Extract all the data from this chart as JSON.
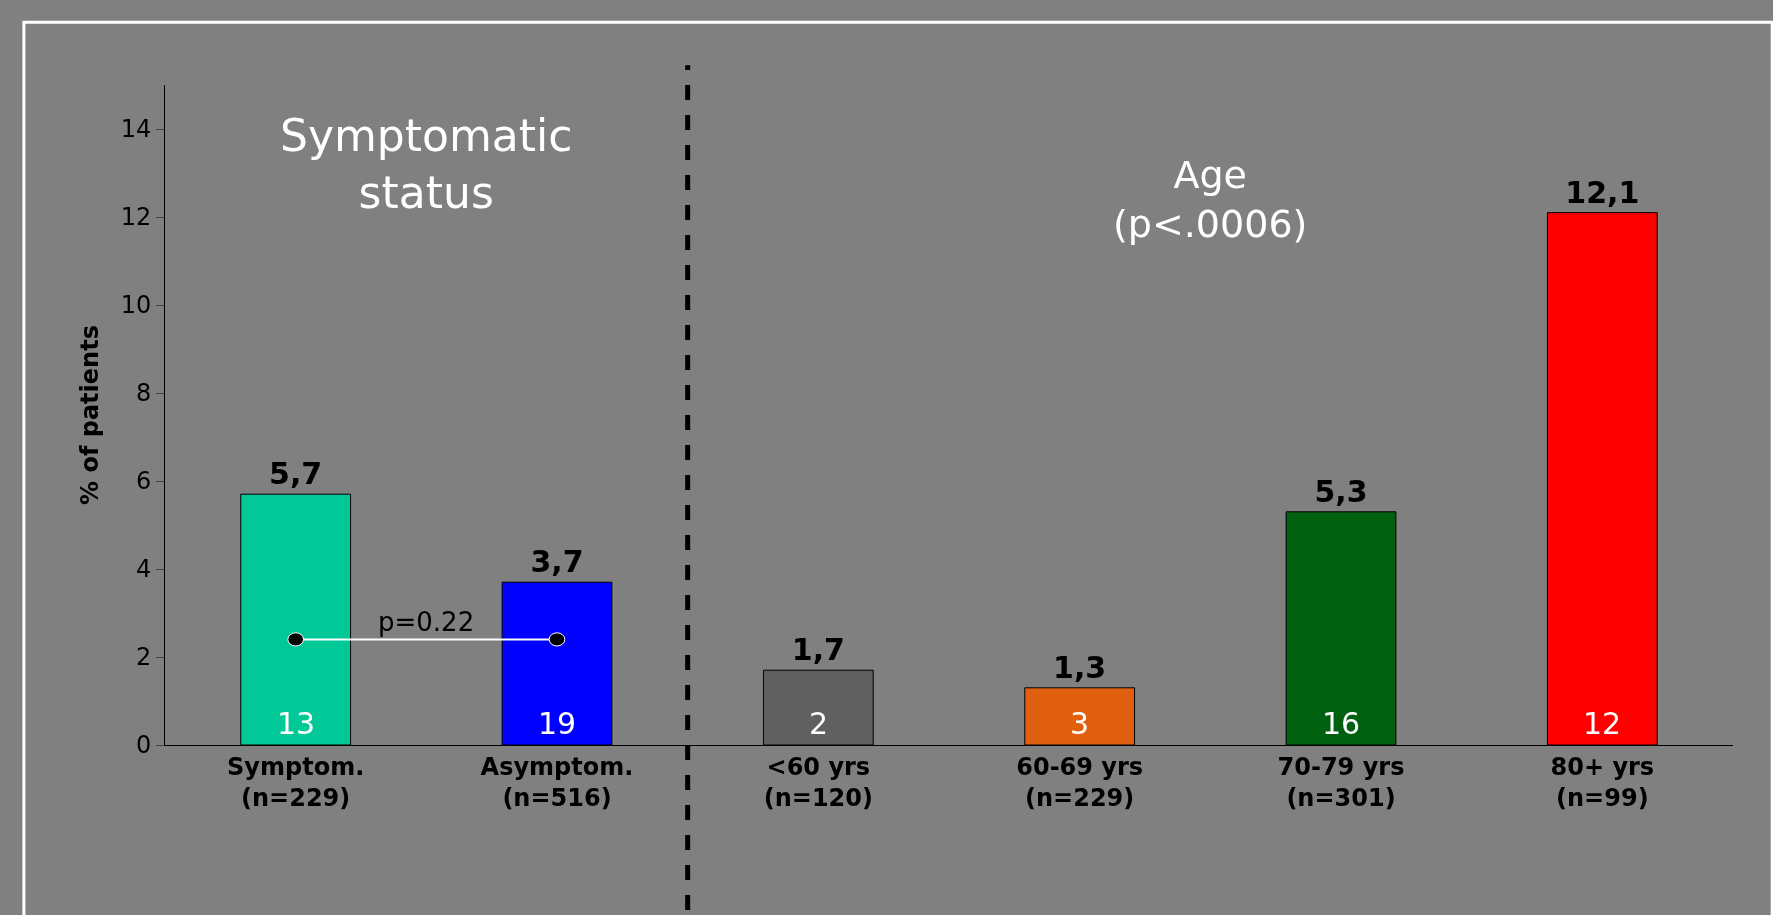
{
  "chart_data": {
    "type": "bar",
    "ylabel": "% of patients",
    "categories": [
      "Symptom.\n(n=229)",
      "Asymptom.\n(n=516)",
      "<60 yrs\n(n=120)",
      "60-69 yrs\n(n=229)",
      "70-79 yrs\n(n=301)",
      "80+ yrs\n(n=99)"
    ],
    "values": [
      5.7,
      3.7,
      1.7,
      1.3,
      5.3,
      12.1
    ],
    "colors": [
      "#00c896",
      "#0000ff",
      "#606060",
      "#e06010",
      "#006010",
      "#ff0000"
    ],
    "value_labels": [
      "5,7",
      "3,7",
      "1,7",
      "1,3",
      "5,3",
      "12,1"
    ],
    "ylim": [
      0,
      15
    ],
    "yticks": [
      0,
      2,
      4,
      6,
      8,
      10,
      12,
      14
    ],
    "grid": false,
    "legend": false,
    "annotations": [
      {
        "text": "13",
        "x": "Symptom.\n(n=229)",
        "y": 0
      },
      {
        "text": "19",
        "x": "Asymptom.\n(n=516)",
        "y": 0
      },
      {
        "text": "2",
        "x": "<60 yrs\n(n=120)",
        "y": 0
      },
      {
        "text": "3",
        "x": "60-69 yrs\n(n=229)",
        "y": 0
      },
      {
        "text": "16",
        "x": "70-79 yrs\n(n=301)",
        "y": 0
      },
      {
        "text": "12",
        "x": "80+ yrs\n(n=99)",
        "y": 0
      },
      "Symptomatic\nstatus",
      "Age\n(p<.0006)",
      "p=0.22"
    ]
  }
}
